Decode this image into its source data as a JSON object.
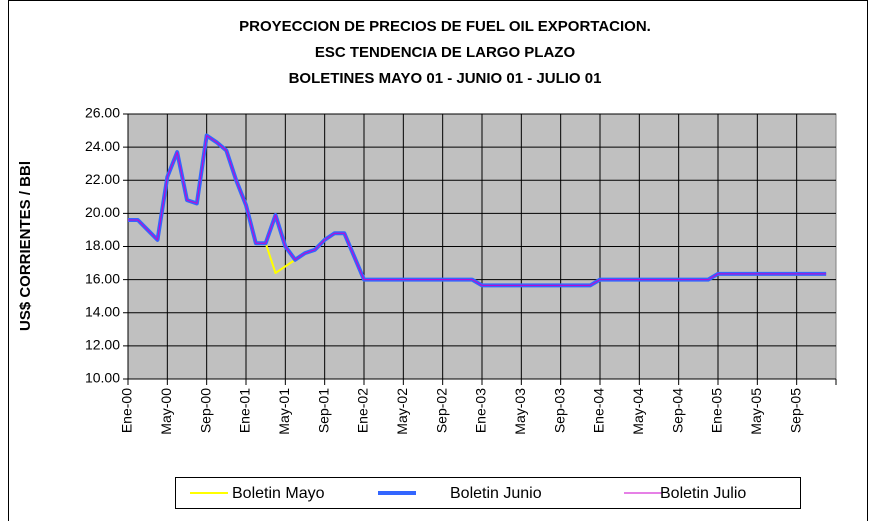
{
  "chart_data": {
    "type": "line",
    "title": [
      "PROYECCION DE PRECIOS DE FUEL OIL EXPORTACION.",
      "ESC TENDENCIA DE LARGO PLAZO",
      "BOLETINES MAYO 01 - JUNIO 01 - JULIO 01"
    ],
    "y_label": "US$ CORRIENTES / BBl",
    "categories": [
      "Ene-00",
      null,
      null,
      null,
      "May-00",
      null,
      null,
      null,
      "Sep-00",
      null,
      null,
      null,
      "Ene-01",
      null,
      null,
      null,
      "May-01",
      null,
      null,
      null,
      "Sep-01",
      null,
      null,
      null,
      "Ene-02",
      null,
      null,
      null,
      "May-02",
      null,
      null,
      null,
      "Sep-02",
      null,
      null,
      null,
      "Ene-03",
      null,
      null,
      null,
      "May-03",
      null,
      null,
      null,
      "Sep-03",
      null,
      null,
      null,
      "Ene-04",
      null,
      null,
      null,
      "May-04",
      null,
      null,
      null,
      "Sep-04",
      null,
      null,
      null,
      "Ene-05",
      null,
      null,
      null,
      "May-05",
      null,
      null,
      null,
      "Sep-05",
      null,
      null,
      null
    ],
    "series": [
      {
        "name": "Boletin Mayo",
        "color": "#ffff00",
        "width": 2,
        "values": [
          19.6,
          19.6,
          19.0,
          18.4,
          22.2,
          23.7,
          20.8,
          20.6,
          24.7,
          24.3,
          23.8,
          22.0,
          20.5,
          18.2,
          18.2,
          16.4,
          16.8,
          17.2,
          17.6,
          17.8,
          18.4,
          18.8,
          18.8,
          17.4,
          16.0,
          16.0,
          16.0,
          16.0,
          16.0,
          16.0,
          16.0,
          16.0,
          16.0,
          16.0,
          16.0,
          16.0,
          15.65,
          15.65,
          15.65,
          15.65,
          15.65,
          15.65,
          15.65,
          15.65,
          15.65,
          15.65,
          15.65,
          15.65,
          16.0,
          16.0,
          16.0,
          16.0,
          16.0,
          16.0,
          16.0,
          16.0,
          16.0,
          16.0,
          16.0,
          16.0,
          16.35,
          16.35,
          16.35,
          16.35,
          16.35,
          16.35,
          16.35,
          16.35,
          16.35,
          16.35,
          16.35,
          16.35
        ]
      },
      {
        "name": "Boletin Junio",
        "color": "#3366ff",
        "width": 4,
        "values": [
          19.6,
          19.6,
          19.0,
          18.4,
          22.2,
          23.7,
          20.8,
          20.6,
          24.7,
          24.3,
          23.8,
          22.0,
          20.5,
          18.2,
          18.2,
          19.9,
          18.0,
          17.2,
          17.6,
          17.8,
          18.4,
          18.8,
          18.8,
          17.4,
          16.0,
          16.0,
          16.0,
          16.0,
          16.0,
          16.0,
          16.0,
          16.0,
          16.0,
          16.0,
          16.0,
          16.0,
          15.65,
          15.65,
          15.65,
          15.65,
          15.65,
          15.65,
          15.65,
          15.65,
          15.65,
          15.65,
          15.65,
          15.65,
          16.0,
          16.0,
          16.0,
          16.0,
          16.0,
          16.0,
          16.0,
          16.0,
          16.0,
          16.0,
          16.0,
          16.0,
          16.35,
          16.35,
          16.35,
          16.35,
          16.35,
          16.35,
          16.35,
          16.35,
          16.35,
          16.35,
          16.35,
          16.35
        ]
      },
      {
        "name": "Boletin Julio",
        "color": "#cc00cc",
        "width": 1,
        "values": [
          19.6,
          19.6,
          19.0,
          18.4,
          22.2,
          23.7,
          20.8,
          20.6,
          24.7,
          24.3,
          23.8,
          22.0,
          20.5,
          18.2,
          18.2,
          19.9,
          18.0,
          17.2,
          17.6,
          17.8,
          18.4,
          18.8,
          18.8,
          17.4,
          16.0,
          16.0,
          16.0,
          16.0,
          16.0,
          16.0,
          16.0,
          16.0,
          16.0,
          16.0,
          16.0,
          16.0,
          15.65,
          15.65,
          15.65,
          15.65,
          15.65,
          15.65,
          15.65,
          15.65,
          15.65,
          15.65,
          15.65,
          15.65,
          16.0,
          16.0,
          16.0,
          16.0,
          16.0,
          16.0,
          16.0,
          16.0,
          16.0,
          16.0,
          16.0,
          16.0,
          16.35,
          16.35,
          16.35,
          16.35,
          16.35,
          16.35,
          16.35,
          16.35,
          16.35,
          16.35,
          16.35,
          16.35
        ]
      }
    ],
    "ylim": [
      10,
      26
    ],
    "yticks": [
      {
        "value": 10,
        "label": "10.00"
      },
      {
        "value": 12,
        "label": "12.00"
      },
      {
        "value": 14,
        "label": "14.00"
      },
      {
        "value": 16,
        "label": "16.00"
      },
      {
        "value": 18,
        "label": "18.00"
      },
      {
        "value": 20,
        "label": "20.00"
      },
      {
        "value": 22,
        "label": "22.00"
      },
      {
        "value": 24,
        "label": "24.00"
      },
      {
        "value": 26,
        "label": "26.00"
      }
    ],
    "grid": true,
    "plot_background": "#c0c0c0",
    "legend": "bottom"
  }
}
